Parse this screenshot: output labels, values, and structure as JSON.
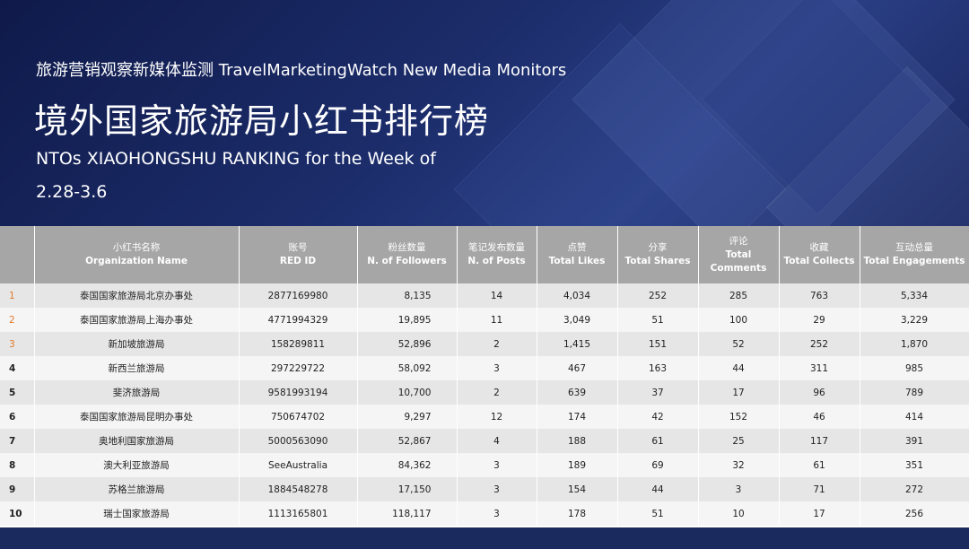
{
  "header": {
    "subtitle": "旅游营销观察新媒体监测 TravelMarketingWatch New Media Monitors",
    "title": "境外国家旅游局小红书排行榜",
    "english_title": "NTOs XIAOHONGSHU RANKING for the Week of",
    "week": "2.28-3.6"
  },
  "table": {
    "columns": [
      {
        "zh": "",
        "en": ""
      },
      {
        "zh": "小红书名称",
        "en": "Organization Name"
      },
      {
        "zh": "账号",
        "en": "RED ID"
      },
      {
        "zh": "粉丝数量",
        "en": "N. of Followers"
      },
      {
        "zh": "笔记发布数量",
        "en": "N. of Posts"
      },
      {
        "zh": "点赞",
        "en": "Total Likes"
      },
      {
        "zh": "分享",
        "en": "Total Shares"
      },
      {
        "zh": "评论",
        "en": "Total Comments"
      },
      {
        "zh": "收藏",
        "en": "Total Collects"
      },
      {
        "zh": "互动总量",
        "en": "Total Engagements"
      }
    ],
    "rows": [
      [
        "1",
        "泰国国家旅游局北京办事处",
        "2877169980",
        "8,135",
        "14",
        "4,034",
        "252",
        "285",
        "763",
        "5,334"
      ],
      [
        "2",
        "泰国国家旅游局上海办事处",
        "4771994329",
        "19,895",
        "11",
        "3,049",
        "51",
        "100",
        "29",
        "3,229"
      ],
      [
        "3",
        "新加坡旅游局",
        "158289811",
        "52,896",
        "2",
        "1,415",
        "151",
        "52",
        "252",
        "1,870"
      ],
      [
        "4",
        "新西兰旅游局",
        "297229722",
        "58,092",
        "3",
        "467",
        "163",
        "44",
        "311",
        "985"
      ],
      [
        "5",
        "斐济旅游局",
        "9581993194",
        "10,700",
        "2",
        "639",
        "37",
        "17",
        "96",
        "789"
      ],
      [
        "6",
        "泰国国家旅游局昆明办事处",
        "750674702",
        "9,297",
        "12",
        "174",
        "42",
        "152",
        "46",
        "414"
      ],
      [
        "7",
        "奥地利国家旅游局",
        "5000563090",
        "52,867",
        "4",
        "188",
        "61",
        "25",
        "117",
        "391"
      ],
      [
        "8",
        "澳大利亚旅游局",
        "SeeAustralia",
        "84,362",
        "3",
        "189",
        "69",
        "32",
        "61",
        "351"
      ],
      [
        "9",
        "苏格兰旅游局",
        "1884548278",
        "17,150",
        "3",
        "154",
        "44",
        "3",
        "71",
        "272"
      ],
      [
        "10",
        "瑞士国家旅游局",
        "1113165801",
        "118,117",
        "3",
        "178",
        "51",
        "10",
        "17",
        "256"
      ]
    ],
    "top_rank_color": "#e07a2a",
    "header_color": "#a6a6a6"
  }
}
